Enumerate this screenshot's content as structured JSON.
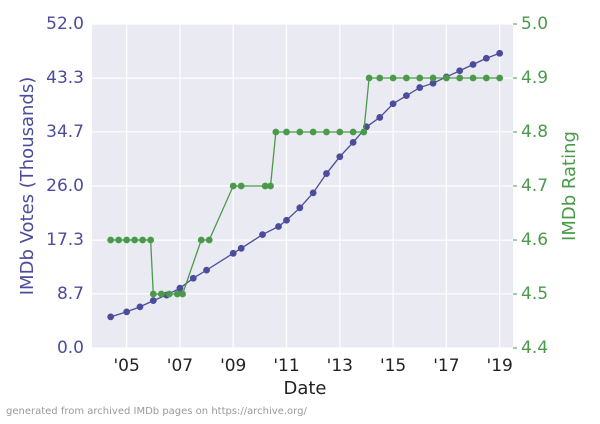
{
  "chart_data": {
    "type": "line",
    "x_label": "Date",
    "y_label": "IMDb Votes (Thousands)",
    "y2_label": "IMDb Rating",
    "footnote": "generated from archived IMDb pages on https://archive.org/",
    "xlim": [
      2003.7,
      2019.5
    ],
    "xticks": [
      {
        "value": 2005,
        "label": "'05"
      },
      {
        "value": 2007,
        "label": "'07"
      },
      {
        "value": 2009,
        "label": "'09"
      },
      {
        "value": 2011,
        "label": "'11"
      },
      {
        "value": 2013,
        "label": "'13"
      },
      {
        "value": 2015,
        "label": "'15"
      },
      {
        "value": 2017,
        "label": "'17"
      },
      {
        "value": 2019,
        "label": "'19"
      }
    ],
    "ylim": [
      0,
      52
    ],
    "yticks": [
      {
        "value": 0,
        "label": "0.0"
      },
      8.7,
      17.3,
      {
        "value": 26,
        "label": "26.0"
      },
      34.7,
      43.3,
      {
        "value": 52,
        "label": "52.0"
      }
    ],
    "y2lim": [
      4.4,
      5.0
    ],
    "y2ticks": [
      4.4,
      4.5,
      4.6,
      4.7,
      4.8,
      4.9,
      {
        "value": 5.0,
        "label": "5.0"
      }
    ],
    "grid": true,
    "series": [
      {
        "name": "IMDb Votes (Thousands)",
        "color": "#4c4c9c",
        "x": [
          2004.4,
          2005,
          2005.5,
          2006,
          2006.5,
          2007,
          2007.5,
          2008,
          2009,
          2009.3,
          2010.1,
          2010.7,
          2011,
          2011.5,
          2012,
          2012.5,
          2013,
          2013.5,
          2014,
          2014.5,
          2015,
          2015.5,
          2016,
          2016.5,
          2017,
          2017.5,
          2018,
          2018.5,
          2019
        ],
        "values": [
          5.0,
          5.8,
          6.6,
          7.6,
          8.5,
          9.6,
          11.2,
          12.5,
          15.2,
          16,
          18.2,
          19.5,
          20.5,
          22.5,
          24.9,
          28,
          30.7,
          33,
          35.5,
          37,
          39.2,
          40.5,
          41.8,
          42.5,
          43.5,
          44.5,
          45.5,
          46.5,
          47.3
        ]
      },
      {
        "name": "IMDb Rating",
        "color": "#4a9a4a",
        "axis": "y2",
        "x": [
          2004.4,
          2004.7,
          2005,
          2005.3,
          2005.6,
          2005.9,
          2006.0,
          2006.3,
          2006.6,
          2006.9,
          2007.1,
          2007.8,
          2008.1,
          2009.0,
          2009.3,
          2010.2,
          2010.4,
          2010.6,
          2011,
          2011.5,
          2012,
          2012.5,
          2013,
          2013.5,
          2013.9,
          2014.1,
          2014.5,
          2015,
          2015.5,
          2016,
          2016.5,
          2017,
          2017.5,
          2018,
          2018.5,
          2019
        ],
        "values": [
          4.6,
          4.6,
          4.6,
          4.6,
          4.6,
          4.6,
          4.5,
          4.5,
          4.5,
          4.5,
          4.5,
          4.6,
          4.6,
          4.7,
          4.7,
          4.7,
          4.7,
          4.8,
          4.8,
          4.8,
          4.8,
          4.8,
          4.8,
          4.8,
          4.8,
          4.9,
          4.9,
          4.9,
          4.9,
          4.9,
          4.9,
          4.9,
          4.9,
          4.9,
          4.9,
          4.9
        ]
      }
    ]
  }
}
